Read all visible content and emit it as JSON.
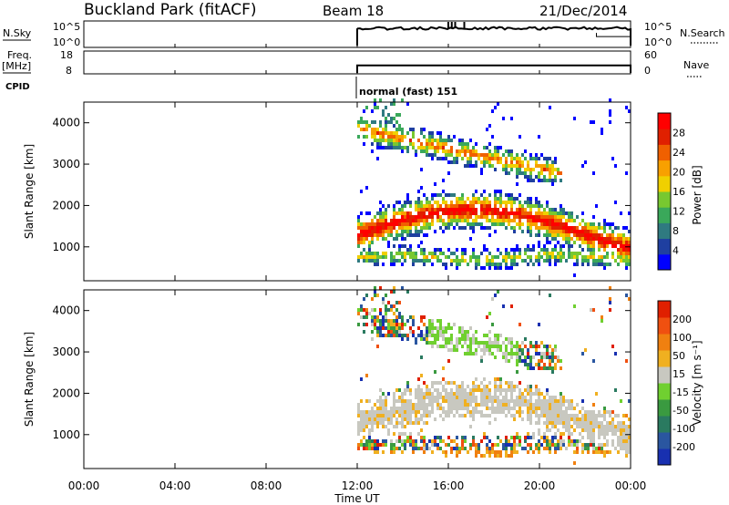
{
  "header": {
    "station": "Buckland Park (fitACF)",
    "beam": "Beam 18",
    "date": "21/Dec/2014"
  },
  "cpid_text": "normal (fast) 151",
  "left_labels": {
    "nsky": "N.Sky",
    "freq": "Freq.",
    "freq_unit": "[MHz]",
    "cpid": "CPID"
  },
  "right_labels": {
    "nsearch": "N.Search",
    "nave": "Nave"
  },
  "chart_data": [
    {
      "type": "line",
      "name": "noise-panel",
      "ylabel": "N.Sky",
      "y2label": "N.Search",
      "yticks": [
        "10^5",
        "10^0"
      ],
      "y2ticks": [
        "10^5",
        "10^0"
      ],
      "x_start_hour": 12,
      "x_end_hour": 24,
      "level": 0.72
    },
    {
      "type": "line",
      "name": "freq-panel",
      "ylabel": "Freq. [MHz]",
      "y2label": "Nave",
      "yticks": [
        "18",
        "8"
      ],
      "y2ticks": [
        "60",
        "0"
      ],
      "x_start_hour": 12,
      "x_end_hour": 24,
      "level": 0.25
    },
    {
      "type": "heatmap",
      "name": "power-panel",
      "ylabel": "Slant Range [km]",
      "ylim": [
        180,
        4500
      ],
      "yticks": [
        1000,
        2000,
        3000,
        4000
      ],
      "xlim": [
        0,
        24
      ],
      "colorbar": {
        "label": "Power [dB]",
        "ticks": [
          4,
          8,
          12,
          16,
          20,
          24,
          28
        ],
        "colors": [
          "#0000ff",
          "#1f3fa0",
          "#2f7a80",
          "#3aa85a",
          "#78c830",
          "#f0d000",
          "#f8a000",
          "#f06000",
          "#e02000",
          "#ff0000"
        ]
      }
    },
    {
      "type": "heatmap",
      "name": "velocity-panel",
      "ylabel": "Slant Range [km]",
      "ylim": [
        180,
        4500
      ],
      "yticks": [
        1000,
        2000,
        3000,
        4000
      ],
      "xlim": [
        0,
        24
      ],
      "colorbar": {
        "label": "Velocity [m s⁻¹]",
        "ticks": [
          "200",
          "100",
          "50",
          "15",
          "-15",
          "-50",
          "-100",
          "-200"
        ],
        "colors": [
          "#1830b0",
          "#2a56a0",
          "#2a7a60",
          "#3a9a40",
          "#70d030",
          "#c8c8c0",
          "#f0b020",
          "#f08010",
          "#f05010",
          "#e02000"
        ]
      }
    }
  ],
  "x_axis": {
    "ticks": [
      "00:00",
      "04:00",
      "08:00",
      "12:00",
      "16:00",
      "20:00",
      "00:00"
    ],
    "label": "Time UT"
  }
}
